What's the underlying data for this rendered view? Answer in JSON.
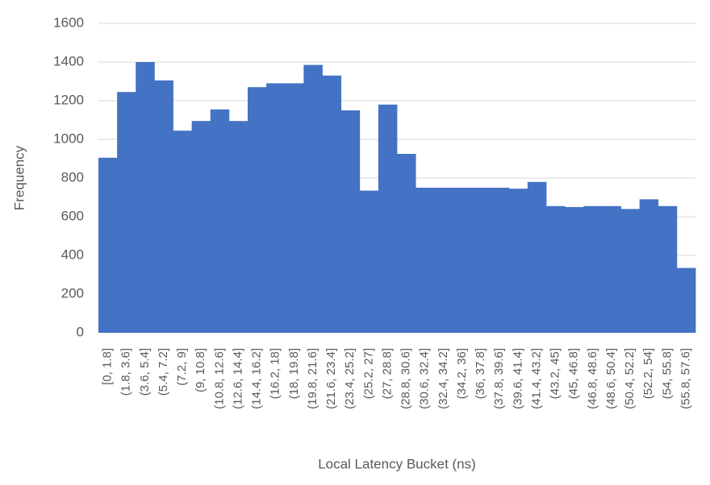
{
  "chart_data": {
    "type": "bar",
    "x_label": "Local Latency Bucket (ns)",
    "y_label": "Frequency",
    "categories": [
      "[0, 1.8]",
      "(1.8, 3.6]",
      "(3.6, 5.4]",
      "(5.4, 7.2]",
      "(7.2, 9]",
      "(9, 10.8]",
      "(10.8, 12.6]",
      "(12.6, 14.4]",
      "(14.4, 16.2]",
      "(16.2, 18]",
      "(18, 19.8]",
      "(19.8, 21.6]",
      "(21.6, 23.4]",
      "(23.4, 25.2]",
      "(25.2, 27]",
      "(27, 28.8]",
      "(28.8, 30.6]",
      "(30.6, 32.4]",
      "(32.4, 34.2]",
      "(34.2, 36]",
      "(36, 37.8]",
      "(37.8, 39.6]",
      "(39.6, 41.4]",
      "(41.4, 43.2]",
      "(43.2, 45]",
      "(45, 46.8]",
      "(46.8, 48.6]",
      "(48.6, 50.4]",
      "(50.4, 52.2]",
      "(52.2, 54]",
      "(54, 55.8]",
      "(55.8, 57.6]"
    ],
    "values": [
      905,
      1245,
      1400,
      1305,
      1045,
      1095,
      1155,
      1095,
      1270,
      1290,
      1290,
      1385,
      1330,
      1150,
      735,
      1180,
      925,
      750,
      750,
      750,
      750,
      750,
      745,
      780,
      655,
      650,
      655,
      655,
      640,
      690,
      655,
      335
    ],
    "color": "#4472c4",
    "ylim": [
      0,
      1600
    ],
    "yticks": [
      0,
      200,
      400,
      600,
      800,
      1000,
      1200,
      1400,
      1600
    ],
    "grid": true
  }
}
